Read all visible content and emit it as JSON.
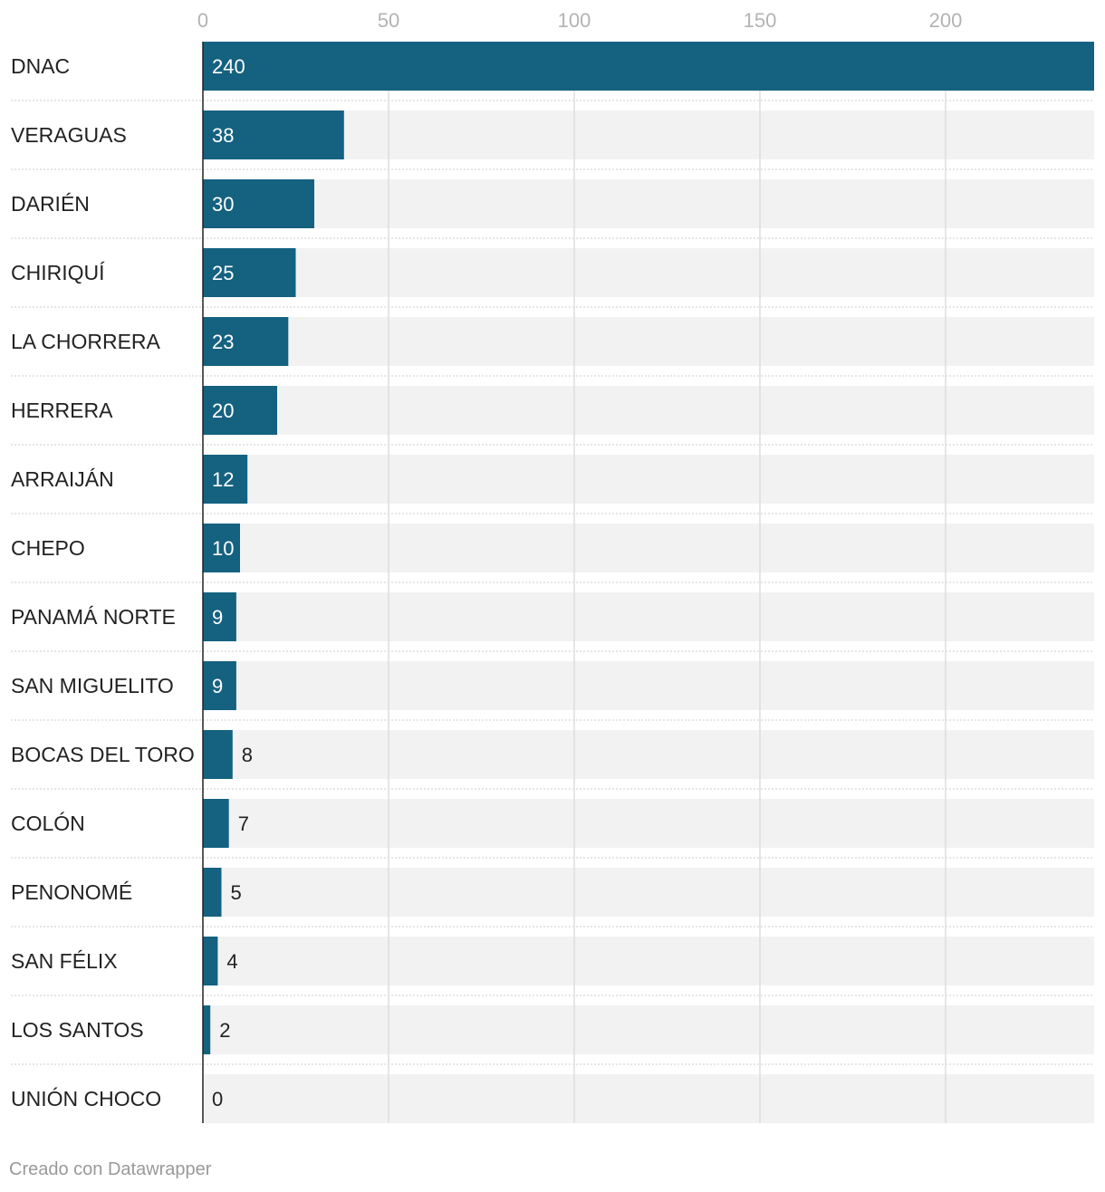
{
  "chart_data": {
    "type": "bar",
    "orientation": "horizontal",
    "categories": [
      "DNAC",
      "VERAGUAS",
      "DARIÉN",
      "CHIRIQUÍ",
      "LA CHORRERA",
      "HERRERA",
      "ARRAIJÁN",
      "CHEPO",
      "PANAMÁ NORTE",
      "SAN MIGUELITO",
      "BOCAS DEL TORO",
      "COLÓN",
      "PENONOMÉ",
      "SAN FÉLIX",
      "LOS SANTOS",
      "UNIÓN CHOCO"
    ],
    "values": [
      240,
      38,
      30,
      25,
      23,
      20,
      12,
      10,
      9,
      9,
      8,
      7,
      5,
      4,
      2,
      0
    ],
    "xlim": [
      0,
      240
    ],
    "xticks": [
      0,
      50,
      100,
      150,
      200
    ],
    "grid": true,
    "bar_color": "#156180",
    "background_color": "#f2f2f2"
  },
  "footer": {
    "credit": "Creado con Datawrapper"
  }
}
